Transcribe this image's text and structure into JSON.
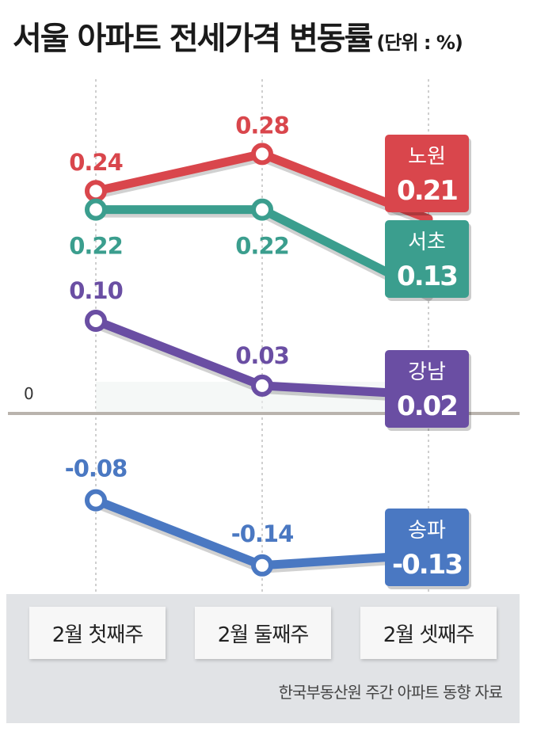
{
  "title": "서울 아파트 전세가격 변동률",
  "unit": "(단위 : %)",
  "source": "한국부동산원 주간 아파트 동향 자료",
  "chart_data": {
    "type": "line",
    "title": "서울 아파트 전세가격 변동률",
    "unit": "(단위 : %)",
    "categories": [
      "2월 첫째주",
      "2월 둘째주",
      "2월 셋째주"
    ],
    "zero_label": "0",
    "series": [
      {
        "name": "노원",
        "values": [
          0.24,
          0.28,
          0.21
        ],
        "labels": [
          "0.24",
          "0.28",
          "0.21"
        ],
        "color": "#d9464c"
      },
      {
        "name": "서초",
        "values": [
          0.22,
          0.22,
          0.13
        ],
        "labels": [
          "0.22",
          "0.22",
          "0.13"
        ],
        "color": "#3b9e8e"
      },
      {
        "name": "강남",
        "values": [
          0.1,
          0.03,
          0.02
        ],
        "labels": [
          "0.10",
          "0.03",
          "0.02"
        ],
        "color": "#6a4ea3"
      },
      {
        "name": "송파",
        "values": [
          -0.08,
          -0.14,
          -0.13
        ],
        "labels": [
          "-0.08",
          "-0.14",
          "-0.13"
        ],
        "color": "#4a78c2"
      }
    ]
  }
}
